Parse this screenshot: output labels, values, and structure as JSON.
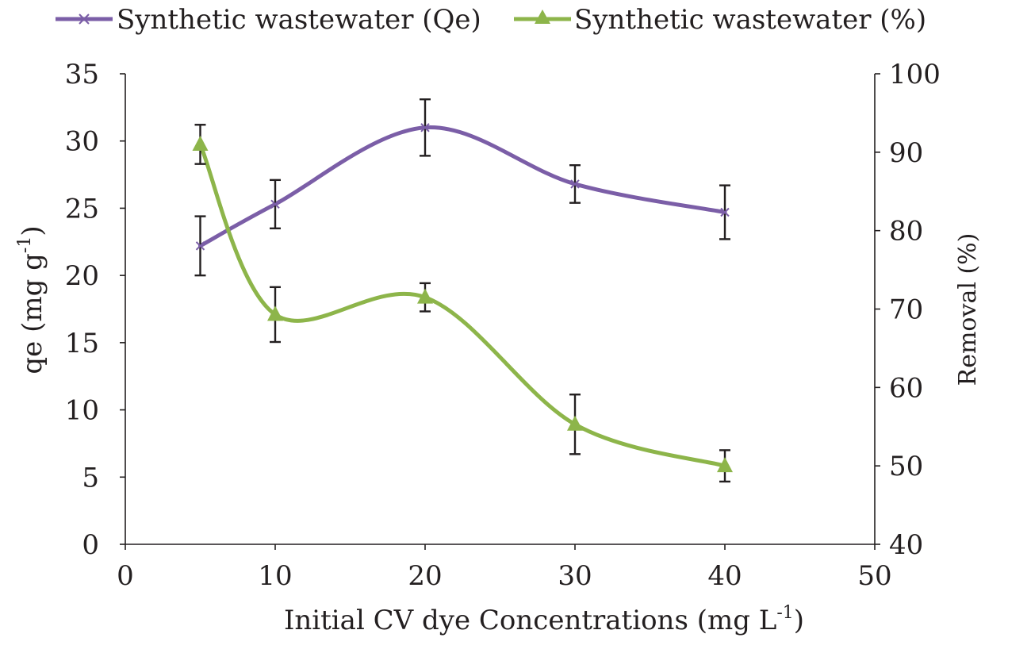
{
  "chart_data": {
    "type": "line",
    "legend": [
      "Synthetic wastewater  (Qe)",
      "Synthetic wastewater (%)"
    ],
    "xlabel_main": "Initial  CV dye Concentrations (mg L",
    "xlabel_sup": "-1",
    "xlabel_close": ")",
    "ylabel_main": "qe (mg g",
    "ylabel_sup": "-1",
    "ylabel_close": ")",
    "y2label": "Removal (%)",
    "xlim": [
      0,
      50
    ],
    "ylim": [
      0,
      35
    ],
    "y2lim": [
      40,
      100
    ],
    "xticks": [
      "0",
      "10",
      "20",
      "30",
      "40",
      "50"
    ],
    "yticks": [
      "0",
      "5",
      "10",
      "15",
      "20",
      "25",
      "30",
      "35"
    ],
    "y2ticks": [
      "40",
      "50",
      "60",
      "70",
      "80",
      "90",
      "100"
    ],
    "series": [
      {
        "name": "Synthetic wastewater  (Qe)",
        "axis": "left",
        "marker": "x",
        "color": "#7b5ea7",
        "x": [
          5,
          10,
          20,
          30,
          40
        ],
        "y": [
          22.2,
          25.3,
          31.0,
          26.8,
          24.7
        ],
        "err": [
          2.2,
          1.8,
          2.1,
          1.4,
          2.0
        ]
      },
      {
        "name": "Synthetic wastewater (%)",
        "axis": "right",
        "marker": "triangle",
        "color": "#8db54a",
        "x": [
          5,
          10,
          20,
          30,
          40
        ],
        "y": [
          91.0,
          69.3,
          71.5,
          55.3,
          50.0
        ],
        "err": [
          2.5,
          3.5,
          1.8,
          3.8,
          2.0
        ]
      }
    ]
  }
}
